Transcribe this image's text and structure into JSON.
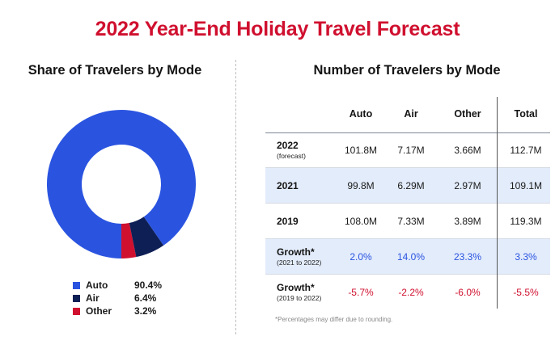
{
  "title": "2022 Year-End Holiday Travel Forecast",
  "left_subtitle": "Share of Travelers by Mode",
  "right_subtitle": "Number of Travelers by Mode",
  "colors": {
    "title_red": "#d0102f",
    "auto_blue": "#2a54e0",
    "air_navy": "#0e1f55",
    "other_red": "#d0102f",
    "growth_blue": "#2a54e0",
    "decline_red": "#d0102f",
    "row_shade": "#e3ecfb"
  },
  "chart_data": [
    {
      "type": "pie",
      "title": "Share of Travelers by Mode",
      "donut": true,
      "categories": [
        "Auto",
        "Air",
        "Other"
      ],
      "values": [
        90.4,
        6.4,
        3.2
      ],
      "labels": [
        "90.4%",
        "6.4%",
        "3.2%"
      ],
      "colors": [
        "#2a54e0",
        "#0e1f55",
        "#d0102f"
      ],
      "legend_position": "bottom"
    },
    {
      "type": "table",
      "title": "Number of Travelers by Mode",
      "columns": [
        "Auto",
        "Air",
        "Other",
        "Total"
      ],
      "rows": [
        {
          "label": "2022",
          "sub": "(forecast)",
          "values": [
            "101.8M",
            "7.17M",
            "3.66M",
            "112.7M"
          ],
          "shaded": false,
          "tone": "neutral"
        },
        {
          "label": "2021",
          "sub": "",
          "values": [
            "99.8M",
            "6.29M",
            "2.97M",
            "109.1M"
          ],
          "shaded": true,
          "tone": "neutral"
        },
        {
          "label": "2019",
          "sub": "",
          "values": [
            "108.0M",
            "7.33M",
            "3.89M",
            "119.3M"
          ],
          "shaded": false,
          "tone": "neutral"
        },
        {
          "label": "Growth*",
          "sub": "(2021 to 2022)",
          "values": [
            "2.0%",
            "14.0%",
            "23.3%",
            "3.3%"
          ],
          "shaded": true,
          "tone": "positive"
        },
        {
          "label": "Growth*",
          "sub": "(2019 to 2022)",
          "values": [
            "-5.7%",
            "-2.2%",
            "-6.0%",
            "-5.5%"
          ],
          "shaded": false,
          "tone": "negative"
        }
      ],
      "footnote": "*Percentages may differ due to rounding."
    }
  ]
}
